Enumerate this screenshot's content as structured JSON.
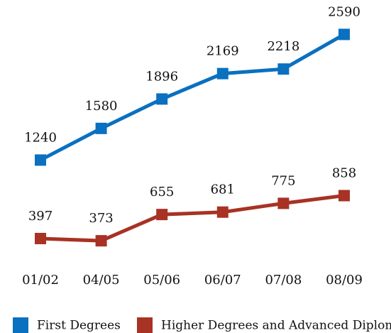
{
  "chart_data": {
    "type": "line",
    "categories": [
      "01/02",
      "04/05",
      "05/06",
      "06/07",
      "07/08",
      "08/09"
    ],
    "series": [
      {
        "name": "First Degrees",
        "color": "#0a70c0",
        "values": [
          1240,
          1580,
          1896,
          2169,
          2218,
          2590
        ]
      },
      {
        "name": "Higher Degrees and Advanced Diplomas",
        "color": "#a83224",
        "values": [
          397,
          373,
          655,
          681,
          775,
          858
        ]
      }
    ]
  }
}
